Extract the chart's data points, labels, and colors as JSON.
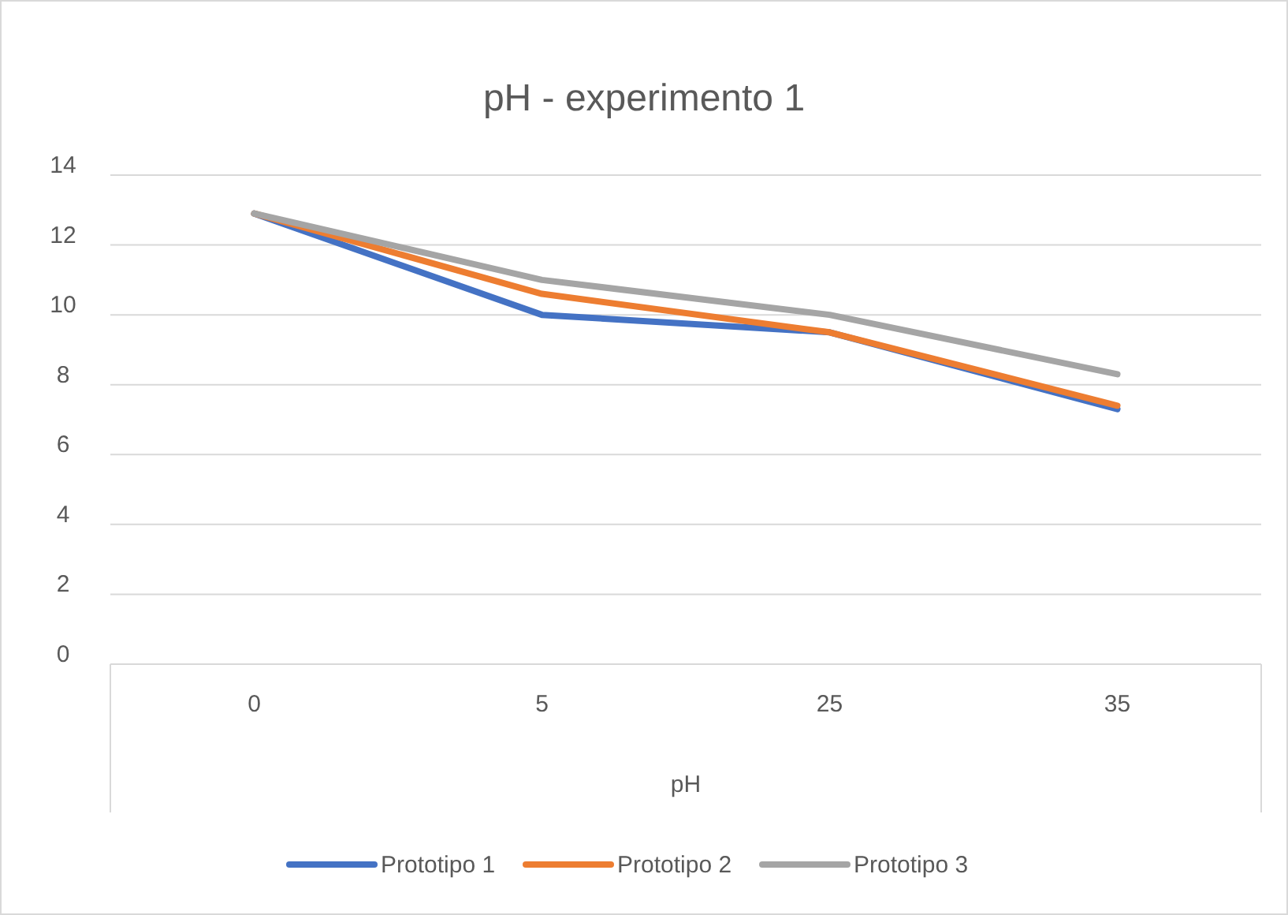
{
  "chart_data": {
    "type": "line",
    "title": "pH - experimento 1",
    "xlabel": "pH",
    "categories": [
      "0",
      "5",
      "25",
      "35"
    ],
    "series": [
      {
        "name": "Prototipo 1",
        "color": "#4472c4",
        "values": [
          12.9,
          10.0,
          9.5,
          7.3
        ]
      },
      {
        "name": "Prototipo 2",
        "color": "#ed7d31",
        "values": [
          12.9,
          10.6,
          9.5,
          7.4
        ]
      },
      {
        "name": "Prototipo 3",
        "color": "#a5a5a5",
        "values": [
          12.9,
          11.0,
          10.0,
          8.3
        ]
      }
    ],
    "ylim": [
      0,
      14
    ],
    "yticks": [
      0,
      2,
      4,
      6,
      8,
      10,
      12,
      14
    ],
    "grid": "y",
    "legend": "bottom",
    "line_style": "solid",
    "marker": "none"
  }
}
